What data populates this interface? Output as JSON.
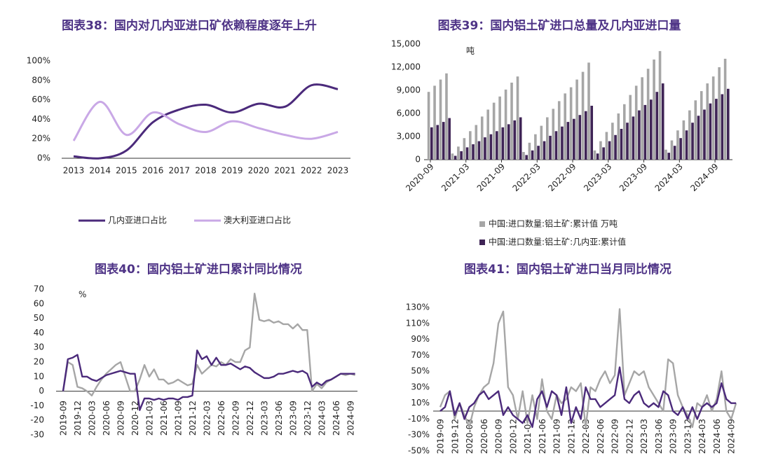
{
  "chart_data": [
    {
      "type": "line",
      "smooth": true,
      "title": "图表38：国内对几内亚进口矿依赖程度逐年上升",
      "categories": [
        "2013",
        "2014",
        "2015",
        "2016",
        "2017",
        "2018",
        "2019",
        "2020",
        "2021",
        "2022",
        "2023"
      ],
      "series": [
        {
          "name": "几内亚进口占比",
          "color": "#4b2a7b",
          "values": [
            2,
            0,
            8,
            37,
            50,
            55,
            47,
            56,
            53,
            75,
            71
          ]
        },
        {
          "name": "澳大利亚进口占比",
          "color": "#c9a8e6",
          "values": [
            18,
            58,
            24,
            47,
            35,
            27,
            38,
            31,
            24,
            20,
            27
          ]
        }
      ],
      "ylim": [
        0,
        100
      ],
      "yticks": [
        {
          "value": 0,
          "label": "0%"
        },
        {
          "value": 20,
          "label": "20%"
        },
        {
          "value": 40,
          "label": "40%"
        },
        {
          "value": 60,
          "label": "60%"
        },
        {
          "value": 80,
          "label": "80%"
        },
        {
          "value": 100,
          "label": "100%"
        }
      ],
      "legend": "bottom"
    },
    {
      "type": "bar",
      "title": "图表39：国内铝土矿进口总量及几内亚进口量",
      "unit": "吨",
      "categories": [
        "2020-09",
        null,
        null,
        null,
        null,
        null,
        "2021-03",
        null,
        null,
        null,
        null,
        null,
        "2021-09",
        null,
        null,
        null,
        null,
        null,
        "2022-03",
        null,
        null,
        null,
        null,
        null,
        "2022-09",
        null,
        null,
        null,
        null,
        null,
        "2023-03",
        null,
        null,
        null,
        null,
        null,
        "2023-09",
        null,
        null,
        null,
        null,
        null,
        "2024-03",
        null,
        null,
        null,
        null,
        null,
        "2024-09",
        null,
        null
      ],
      "series": [
        {
          "name": "中国:进口数量:铝土矿:累计值 万吨",
          "color": "#a6a6a6",
          "values": [
            8800,
            9600,
            10400,
            11200,
            800,
            1700,
            2800,
            3700,
            4500,
            5600,
            6500,
            7400,
            8200,
            9100,
            10000,
            10800,
            1000,
            2200,
            3300,
            4400,
            5500,
            6600,
            7600,
            8600,
            9400,
            10400,
            11400,
            12600,
            1200,
            2400,
            3600,
            4800,
            6000,
            7200,
            8400,
            9600,
            10700,
            11800,
            13000,
            14100,
            1300,
            2500,
            3800,
            5100,
            6400,
            7700,
            8900,
            9900,
            10800,
            12000,
            13100
          ]
        },
        {
          "name": "中国:进口数量:铝土矿:几内亚:累计值",
          "color": "#3f2456",
          "values": [
            4200,
            4500,
            4900,
            5400,
            500,
            1100,
            1600,
            2000,
            2400,
            2900,
            3300,
            3700,
            4200,
            4600,
            5100,
            5500,
            600,
            1200,
            1800,
            2400,
            3100,
            3700,
            4300,
            4900,
            5300,
            5800,
            6300,
            7000,
            800,
            1600,
            2400,
            3200,
            4000,
            4800,
            5600,
            6400,
            7100,
            7800,
            8800,
            9900,
            900,
            1800,
            2800,
            3800,
            4800,
            5700,
            6500,
            7300,
            7900,
            8500,
            9200
          ]
        }
      ],
      "ylim": [
        0,
        15000
      ],
      "yticks": [
        0,
        {
          "value": 3000,
          "label": "3,000"
        },
        {
          "value": 6000,
          "label": "6,000"
        },
        {
          "value": 9000,
          "label": "9,000"
        },
        {
          "value": 12000,
          "label": "12,000"
        },
        {
          "value": 15000,
          "label": "15,000"
        }
      ],
      "legend": "bottom"
    },
    {
      "type": "line",
      "title": "图表40：国内铝土矿进口累计同比情况",
      "unit": "%",
      "categories": [
        "2019-09",
        null,
        null,
        "2019-12",
        null,
        null,
        "2020-03",
        null,
        null,
        "2020-06",
        null,
        null,
        "2020-09",
        null,
        null,
        "2020-12",
        null,
        null,
        "2021-03",
        null,
        null,
        "2021-06",
        null,
        null,
        "2021-09",
        null,
        null,
        "2021-12",
        null,
        null,
        "2022-03",
        null,
        null,
        "2022-06",
        null,
        null,
        "2022-09",
        null,
        null,
        "2022-12",
        null,
        null,
        "2023-03",
        null,
        null,
        "2023-06",
        null,
        null,
        "2023-09",
        null,
        null,
        "2023-12",
        null,
        null,
        "2024-03",
        null,
        null,
        "2024-06",
        null,
        null,
        "2024-09",
        null
      ],
      "series": [
        {
          "color": "#a6a6a6",
          "values": [
            0,
            20,
            18,
            3,
            2,
            0,
            -3,
            3,
            8,
            12,
            15,
            18,
            20,
            10,
            0,
            0,
            8,
            18,
            10,
            15,
            8,
            8,
            5,
            6,
            8,
            6,
            4,
            5,
            18,
            12,
            15,
            18,
            17,
            20,
            18,
            22,
            20,
            20,
            28,
            30,
            67,
            49,
            48,
            49,
            47,
            48,
            46,
            46,
            43,
            46,
            42,
            42,
            0,
            5,
            2,
            6,
            8,
            10,
            12,
            11,
            12,
            11
          ]
        },
        {
          "color": "#4b2a7b",
          "values": [
            0,
            22,
            23,
            25,
            10,
            10,
            8,
            7,
            9,
            11,
            12,
            13,
            14,
            13,
            12,
            12,
            -13,
            -5,
            -5,
            -6,
            -5,
            -6,
            -5,
            -5,
            -6,
            -4,
            -4,
            -3,
            28,
            22,
            24,
            18,
            23,
            18,
            18,
            19,
            17,
            15,
            17,
            16,
            13,
            11,
            9,
            9,
            10,
            12,
            12,
            13,
            14,
            13,
            14,
            12,
            3,
            6,
            4,
            7,
            8,
            10,
            12,
            12,
            12,
            12
          ]
        }
      ],
      "ylim": [
        -30,
        70
      ],
      "yticks": [
        -30,
        -20,
        -10,
        0,
        10,
        20,
        30,
        40,
        50,
        60,
        70
      ]
    },
    {
      "type": "line",
      "title": "图表41：国内铝土矿进口当月同比情况",
      "categories": [
        "2019-09",
        null,
        null,
        "2019-12",
        null,
        null,
        "2020-03",
        null,
        null,
        "2020-06",
        null,
        null,
        "2020-09",
        null,
        null,
        "2020-12",
        null,
        null,
        "2021-03",
        null,
        null,
        "2021-06",
        null,
        null,
        "2021-09",
        null,
        null,
        "2021-12",
        null,
        null,
        "2022-03",
        null,
        null,
        "2022-06",
        null,
        null,
        "2022-09",
        null,
        null,
        "2022-12",
        null,
        null,
        "2023-03",
        null,
        null,
        "2023-06",
        null,
        null,
        "2023-09",
        null,
        null,
        "2023-12",
        null,
        null,
        "2024-03",
        null,
        null,
        "2024-06",
        null,
        null,
        "2024-09",
        null
      ],
      "series": [
        {
          "color": "#a6a6a6",
          "values": [
            5,
            20,
            25,
            -10,
            10,
            -5,
            -20,
            5,
            20,
            30,
            35,
            60,
            110,
            125,
            30,
            20,
            -10,
            25,
            -15,
            20,
            -10,
            40,
            0,
            -10,
            20,
            10,
            15,
            30,
            25,
            35,
            -20,
            30,
            25,
            40,
            50,
            35,
            45,
            128,
            20,
            35,
            50,
            45,
            50,
            30,
            20,
            10,
            0,
            65,
            60,
            20,
            5,
            -5,
            -20,
            10,
            5,
            20,
            0,
            15,
            50,
            0,
            -10,
            10
          ]
        },
        {
          "color": "#4b2a7b",
          "values": [
            0,
            5,
            25,
            -5,
            10,
            -10,
            5,
            10,
            20,
            25,
            15,
            20,
            25,
            -5,
            5,
            -5,
            -10,
            -15,
            -5,
            -20,
            15,
            25,
            5,
            25,
            20,
            -5,
            30,
            -15,
            5,
            -10,
            30,
            15,
            15,
            5,
            10,
            15,
            20,
            55,
            15,
            10,
            20,
            25,
            10,
            5,
            10,
            5,
            25,
            20,
            0,
            -5,
            5,
            -10,
            5,
            -10,
            5,
            10,
            5,
            10,
            35,
            15,
            10,
            10
          ]
        }
      ],
      "ylim": [
        -50,
        130
      ],
      "yticks": [
        {
          "value": -50,
          "label": "-50%"
        },
        {
          "value": -30,
          "label": "-30%"
        },
        {
          "value": -10,
          "label": "-10%"
        },
        {
          "value": 10,
          "label": "10%"
        },
        {
          "value": 30,
          "label": "30%"
        },
        {
          "value": 50,
          "label": "50%"
        },
        {
          "value": 70,
          "label": "70%"
        },
        {
          "value": 90,
          "label": "90%"
        },
        {
          "value": 110,
          "label": "110%"
        },
        {
          "value": 130,
          "label": "130%"
        }
      ]
    }
  ]
}
